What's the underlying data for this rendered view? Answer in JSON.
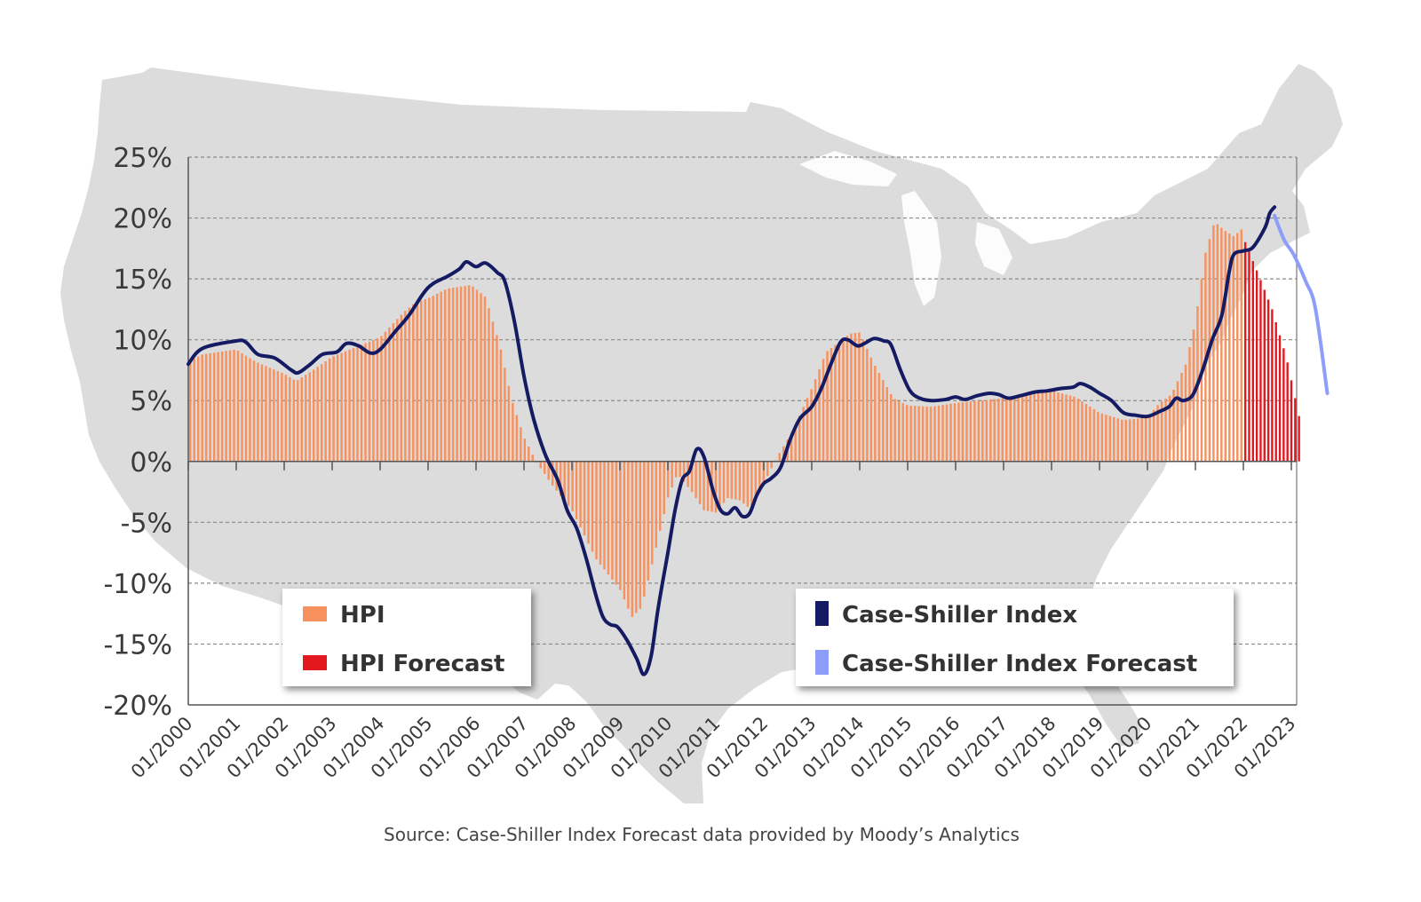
{
  "colors": {
    "hpi": "#f7925f",
    "hpi_forecast": "#e3171e",
    "case_shiller": "#151b63",
    "case_shiller_forecast": "#8e9dfa",
    "map": "#dcdcdc",
    "grid": "#8a8a8a"
  },
  "chart_data": {
    "type": "bar+line",
    "title": "",
    "xlabel": "",
    "ylabel": "",
    "ylim": [
      -20,
      25
    ],
    "y_ticks": [
      25,
      20,
      15,
      10,
      5,
      0,
      -5,
      -10,
      -15,
      -20
    ],
    "y_tick_labels": [
      "25%",
      "20%",
      "15%",
      "10%",
      "5%",
      "0%",
      "-5%",
      "-10%",
      "-15%",
      "-20%"
    ],
    "x_tick_labels": [
      "01/2000",
      "01/2001",
      "01/2002",
      "01/2003",
      "01/2004",
      "01/2005",
      "01/2006",
      "01/2007",
      "01/2008",
      "01/2009",
      "01/2010",
      "01/2011",
      "01/2012",
      "01/2013",
      "01/2014",
      "01/2015",
      "01/2016",
      "01/2017",
      "01/2018",
      "01/2019",
      "01/2020",
      "01/2021",
      "01/2022",
      "01/2023"
    ],
    "x_range": [
      2000.0,
      2023.25
    ],
    "series": [
      {
        "name": "HPI",
        "kind": "bar",
        "x_start": 2000.0,
        "x_end": 2022.0,
        "anchors": [
          [
            2000.0,
            8.2
          ],
          [
            2000.3,
            8.8
          ],
          [
            2001.0,
            9.2
          ],
          [
            2001.4,
            8.2
          ],
          [
            2002.0,
            7.2
          ],
          [
            2002.25,
            6.6
          ],
          [
            2002.6,
            7.5
          ],
          [
            2003.0,
            8.6
          ],
          [
            2003.5,
            9.4
          ],
          [
            2004.0,
            10.2
          ],
          [
            2004.5,
            12.3
          ],
          [
            2004.75,
            13.1
          ],
          [
            2005.0,
            13.4
          ],
          [
            2005.4,
            14.2
          ],
          [
            2005.9,
            14.5
          ],
          [
            2006.2,
            13.5
          ],
          [
            2006.5,
            9.5
          ],
          [
            2006.75,
            5.0
          ],
          [
            2007.0,
            2.0
          ],
          [
            2007.25,
            0.0
          ],
          [
            2007.6,
            -2.0
          ],
          [
            2008.0,
            -4.0
          ],
          [
            2008.5,
            -8.0
          ],
          [
            2009.0,
            -10.5
          ],
          [
            2009.25,
            -12.8
          ],
          [
            2009.45,
            -12.0
          ],
          [
            2009.7,
            -8.0
          ],
          [
            2010.0,
            -3.0
          ],
          [
            2010.2,
            -1.0
          ],
          [
            2010.5,
            -2.5
          ],
          [
            2010.75,
            -4.0
          ],
          [
            2011.0,
            -4.2
          ],
          [
            2011.25,
            -3.0
          ],
          [
            2011.5,
            -3.2
          ],
          [
            2011.75,
            -4.0
          ],
          [
            2012.0,
            -1.8
          ],
          [
            2012.3,
            0.5
          ],
          [
            2012.6,
            2.5
          ],
          [
            2013.0,
            6.0
          ],
          [
            2013.3,
            9.0
          ],
          [
            2013.8,
            10.5
          ],
          [
            2014.0,
            10.6
          ],
          [
            2014.3,
            8.0
          ],
          [
            2014.7,
            5.2
          ],
          [
            2015.0,
            4.6
          ],
          [
            2015.5,
            4.5
          ],
          [
            2016.0,
            4.8
          ],
          [
            2016.5,
            5.0
          ],
          [
            2017.0,
            5.2
          ],
          [
            2017.5,
            5.5
          ],
          [
            2018.0,
            5.8
          ],
          [
            2018.5,
            5.3
          ],
          [
            2019.0,
            4.0
          ],
          [
            2019.5,
            3.4
          ],
          [
            2020.0,
            3.6
          ],
          [
            2020.25,
            4.8
          ],
          [
            2020.5,
            5.5
          ],
          [
            2020.8,
            8.0
          ],
          [
            2021.0,
            11.5
          ],
          [
            2021.2,
            17.0
          ],
          [
            2021.4,
            19.7
          ],
          [
            2021.6,
            19.0
          ],
          [
            2021.8,
            18.5
          ],
          [
            2022.0,
            19.2
          ]
        ],
        "bar_count": 265
      },
      {
        "name": "HPI Forecast",
        "kind": "bar",
        "x_start": 2022.0,
        "x_end": 2023.2,
        "anchors": [
          [
            2022.0,
            18.4
          ],
          [
            2022.3,
            15.5
          ],
          [
            2022.6,
            12.5
          ],
          [
            2022.9,
            8.5
          ],
          [
            2023.2,
            3.0
          ]
        ],
        "bar_count": 15
      },
      {
        "name": "Case-Shiller Index",
        "kind": "line",
        "points": [
          [
            2000.0,
            8.0
          ],
          [
            2000.3,
            9.3
          ],
          [
            2001.0,
            9.9
          ],
          [
            2001.2,
            9.8
          ],
          [
            2001.45,
            8.8
          ],
          [
            2001.8,
            8.5
          ],
          [
            2002.15,
            7.5
          ],
          [
            2002.3,
            7.3
          ],
          [
            2002.55,
            8.0
          ],
          [
            2002.8,
            8.8
          ],
          [
            2003.1,
            9.0
          ],
          [
            2003.3,
            9.7
          ],
          [
            2003.55,
            9.5
          ],
          [
            2003.8,
            8.9
          ],
          [
            2004.0,
            9.2
          ],
          [
            2004.3,
            10.6
          ],
          [
            2004.6,
            12.0
          ],
          [
            2004.9,
            13.8
          ],
          [
            2005.1,
            14.6
          ],
          [
            2005.4,
            15.2
          ],
          [
            2005.65,
            15.8
          ],
          [
            2005.8,
            16.4
          ],
          [
            2006.0,
            16.0
          ],
          [
            2006.2,
            16.3
          ],
          [
            2006.45,
            15.5
          ],
          [
            2006.6,
            14.8
          ],
          [
            2006.8,
            11.5
          ],
          [
            2007.0,
            7.0
          ],
          [
            2007.2,
            3.5
          ],
          [
            2007.45,
            0.5
          ],
          [
            2007.7,
            -1.5
          ],
          [
            2007.9,
            -4.0
          ],
          [
            2008.1,
            -5.5
          ],
          [
            2008.3,
            -8.0
          ],
          [
            2008.5,
            -11.0
          ],
          [
            2008.65,
            -12.8
          ],
          [
            2008.8,
            -13.4
          ],
          [
            2008.95,
            -13.6
          ],
          [
            2009.15,
            -14.7
          ],
          [
            2009.35,
            -16.2
          ],
          [
            2009.5,
            -17.5
          ],
          [
            2009.65,
            -16.0
          ],
          [
            2009.8,
            -12.0
          ],
          [
            2010.0,
            -7.5
          ],
          [
            2010.15,
            -4.0
          ],
          [
            2010.3,
            -1.5
          ],
          [
            2010.45,
            -0.8
          ],
          [
            2010.6,
            1.0
          ],
          [
            2010.75,
            0.4
          ],
          [
            2010.95,
            -2.5
          ],
          [
            2011.1,
            -4.0
          ],
          [
            2011.25,
            -4.3
          ],
          [
            2011.4,
            -3.8
          ],
          [
            2011.55,
            -4.5
          ],
          [
            2011.7,
            -4.3
          ],
          [
            2011.85,
            -2.8
          ],
          [
            2012.0,
            -1.8
          ],
          [
            2012.15,
            -1.4
          ],
          [
            2012.35,
            -0.5
          ],
          [
            2012.55,
            1.8
          ],
          [
            2012.75,
            3.5
          ],
          [
            2013.0,
            4.5
          ],
          [
            2013.2,
            6.0
          ],
          [
            2013.4,
            8.0
          ],
          [
            2013.6,
            9.8
          ],
          [
            2013.75,
            10.0
          ],
          [
            2013.95,
            9.5
          ],
          [
            2014.1,
            9.7
          ],
          [
            2014.3,
            10.1
          ],
          [
            2014.5,
            9.9
          ],
          [
            2014.65,
            9.6
          ],
          [
            2014.85,
            7.5
          ],
          [
            2015.05,
            5.8
          ],
          [
            2015.25,
            5.2
          ],
          [
            2015.5,
            5.0
          ],
          [
            2015.8,
            5.1
          ],
          [
            2016.0,
            5.3
          ],
          [
            2016.2,
            5.1
          ],
          [
            2016.45,
            5.4
          ],
          [
            2016.7,
            5.6
          ],
          [
            2016.9,
            5.5
          ],
          [
            2017.1,
            5.2
          ],
          [
            2017.35,
            5.4
          ],
          [
            2017.65,
            5.7
          ],
          [
            2017.9,
            5.8
          ],
          [
            2018.2,
            6.0
          ],
          [
            2018.45,
            6.1
          ],
          [
            2018.6,
            6.4
          ],
          [
            2018.8,
            6.1
          ],
          [
            2019.0,
            5.6
          ],
          [
            2019.25,
            5.0
          ],
          [
            2019.5,
            4.0
          ],
          [
            2019.75,
            3.8
          ],
          [
            2020.0,
            3.7
          ],
          [
            2020.25,
            4.1
          ],
          [
            2020.45,
            4.5
          ],
          [
            2020.6,
            5.2
          ],
          [
            2020.75,
            5.0
          ],
          [
            2020.95,
            5.5
          ],
          [
            2021.15,
            7.5
          ],
          [
            2021.35,
            10.0
          ],
          [
            2021.55,
            12.0
          ],
          [
            2021.7,
            15.5
          ],
          [
            2021.8,
            17.0
          ],
          [
            2022.0,
            17.3
          ],
          [
            2022.2,
            17.6
          ],
          [
            2022.45,
            19.2
          ],
          [
            2022.55,
            20.4
          ],
          [
            2022.65,
            20.9
          ]
        ]
      },
      {
        "name": "Case-Shiller Index Forecast",
        "kind": "line",
        "points": [
          [
            2022.65,
            20.2
          ],
          [
            2022.85,
            18.2
          ],
          [
            2023.05,
            17.0
          ],
          [
            2023.3,
            14.8
          ],
          [
            2023.5,
            12.6
          ],
          [
            2023.75,
            5.6
          ]
        ]
      }
    ]
  },
  "legend_left": {
    "items": [
      {
        "label": "HPI",
        "color_key": "hpi"
      },
      {
        "label": "HPI Forecast",
        "color_key": "hpi_forecast"
      }
    ]
  },
  "legend_right": {
    "items": [
      {
        "label": "Case-Shiller Index",
        "color_key": "case_shiller"
      },
      {
        "label": "Case-Shiller Index Forecast",
        "color_key": "case_shiller_forecast"
      }
    ]
  },
  "source": "Source: Case-Shiller Index Forecast data provided by Moody’s Analytics"
}
